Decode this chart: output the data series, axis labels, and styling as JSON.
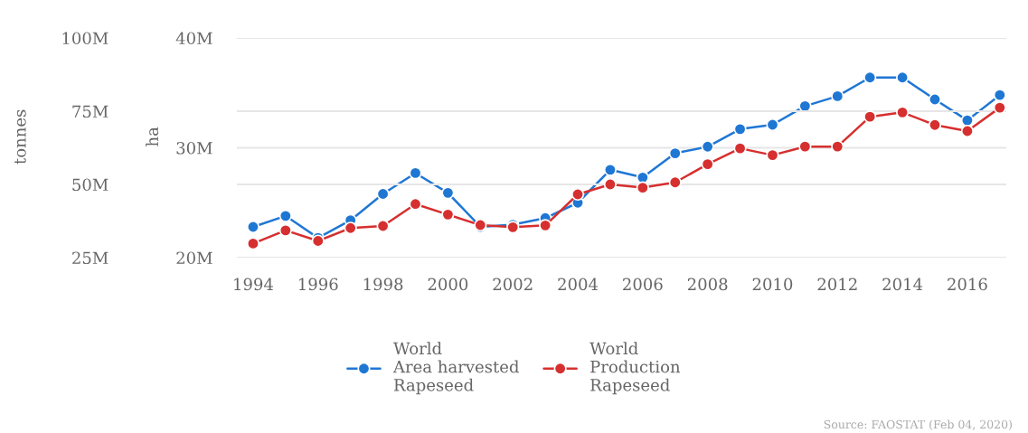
{
  "chart_data": {
    "type": "line",
    "x": [
      1994,
      1995,
      1996,
      1997,
      1998,
      1999,
      2000,
      2001,
      2002,
      2003,
      2004,
      2005,
      2006,
      2007,
      2008,
      2009,
      2010,
      2011,
      2012,
      2013,
      2014,
      2015,
      2016,
      2017
    ],
    "series": [
      {
        "name": "World\nArea harvested\nRapeseed",
        "color": "#1f77d4",
        "axis": "y",
        "values": [
          22800000,
          23800000,
          21800000,
          23400000,
          25800000,
          27700000,
          25900000,
          22800000,
          23000000,
          23600000,
          25000000,
          28000000,
          27300000,
          29500000,
          30100000,
          31700000,
          32100000,
          33800000,
          34700000,
          36400000,
          36400000,
          34400000,
          32500000,
          34800000
        ]
      },
      {
        "name": "World\nProduction\nRapeseed",
        "color": "#d62f2f",
        "axis": "y2",
        "values": [
          29800000,
          34300000,
          30700000,
          35100000,
          35800000,
          43300000,
          39700000,
          36100000,
          35400000,
          36000000,
          46600000,
          50000000,
          48900000,
          50700000,
          56900000,
          62300000,
          60000000,
          62900000,
          62900000,
          73100000,
          74600000,
          70300000,
          68200000,
          76200000
        ]
      }
    ],
    "ylabel": "ha",
    "y2label": "tonnes",
    "ylim": [
      20000000,
      40000000
    ],
    "yticks": [
      {
        "value": 20000000,
        "label": "20M"
      },
      {
        "value": 30000000,
        "label": "30M"
      },
      {
        "value": 40000000,
        "label": "40M"
      }
    ],
    "y2lim": [
      25000000,
      100000000
    ],
    "y2ticks": [
      {
        "value": 25000000,
        "label": "25M"
      },
      {
        "value": 50000000,
        "label": "50M"
      },
      {
        "value": 75000000,
        "label": "75M"
      },
      {
        "value": 100000000,
        "label": "100M"
      }
    ],
    "xlim": [
      1993.5,
      2017.2
    ],
    "xticks": [
      1994,
      1996,
      1998,
      2000,
      2002,
      2004,
      2006,
      2008,
      2010,
      2012,
      2014,
      2016
    ],
    "grid": "y",
    "legend": "bottom",
    "marker": "circle",
    "line_style": "solid",
    "annotations": [
      "Source: FAOSTAT (Feb 04, 2020)"
    ]
  }
}
